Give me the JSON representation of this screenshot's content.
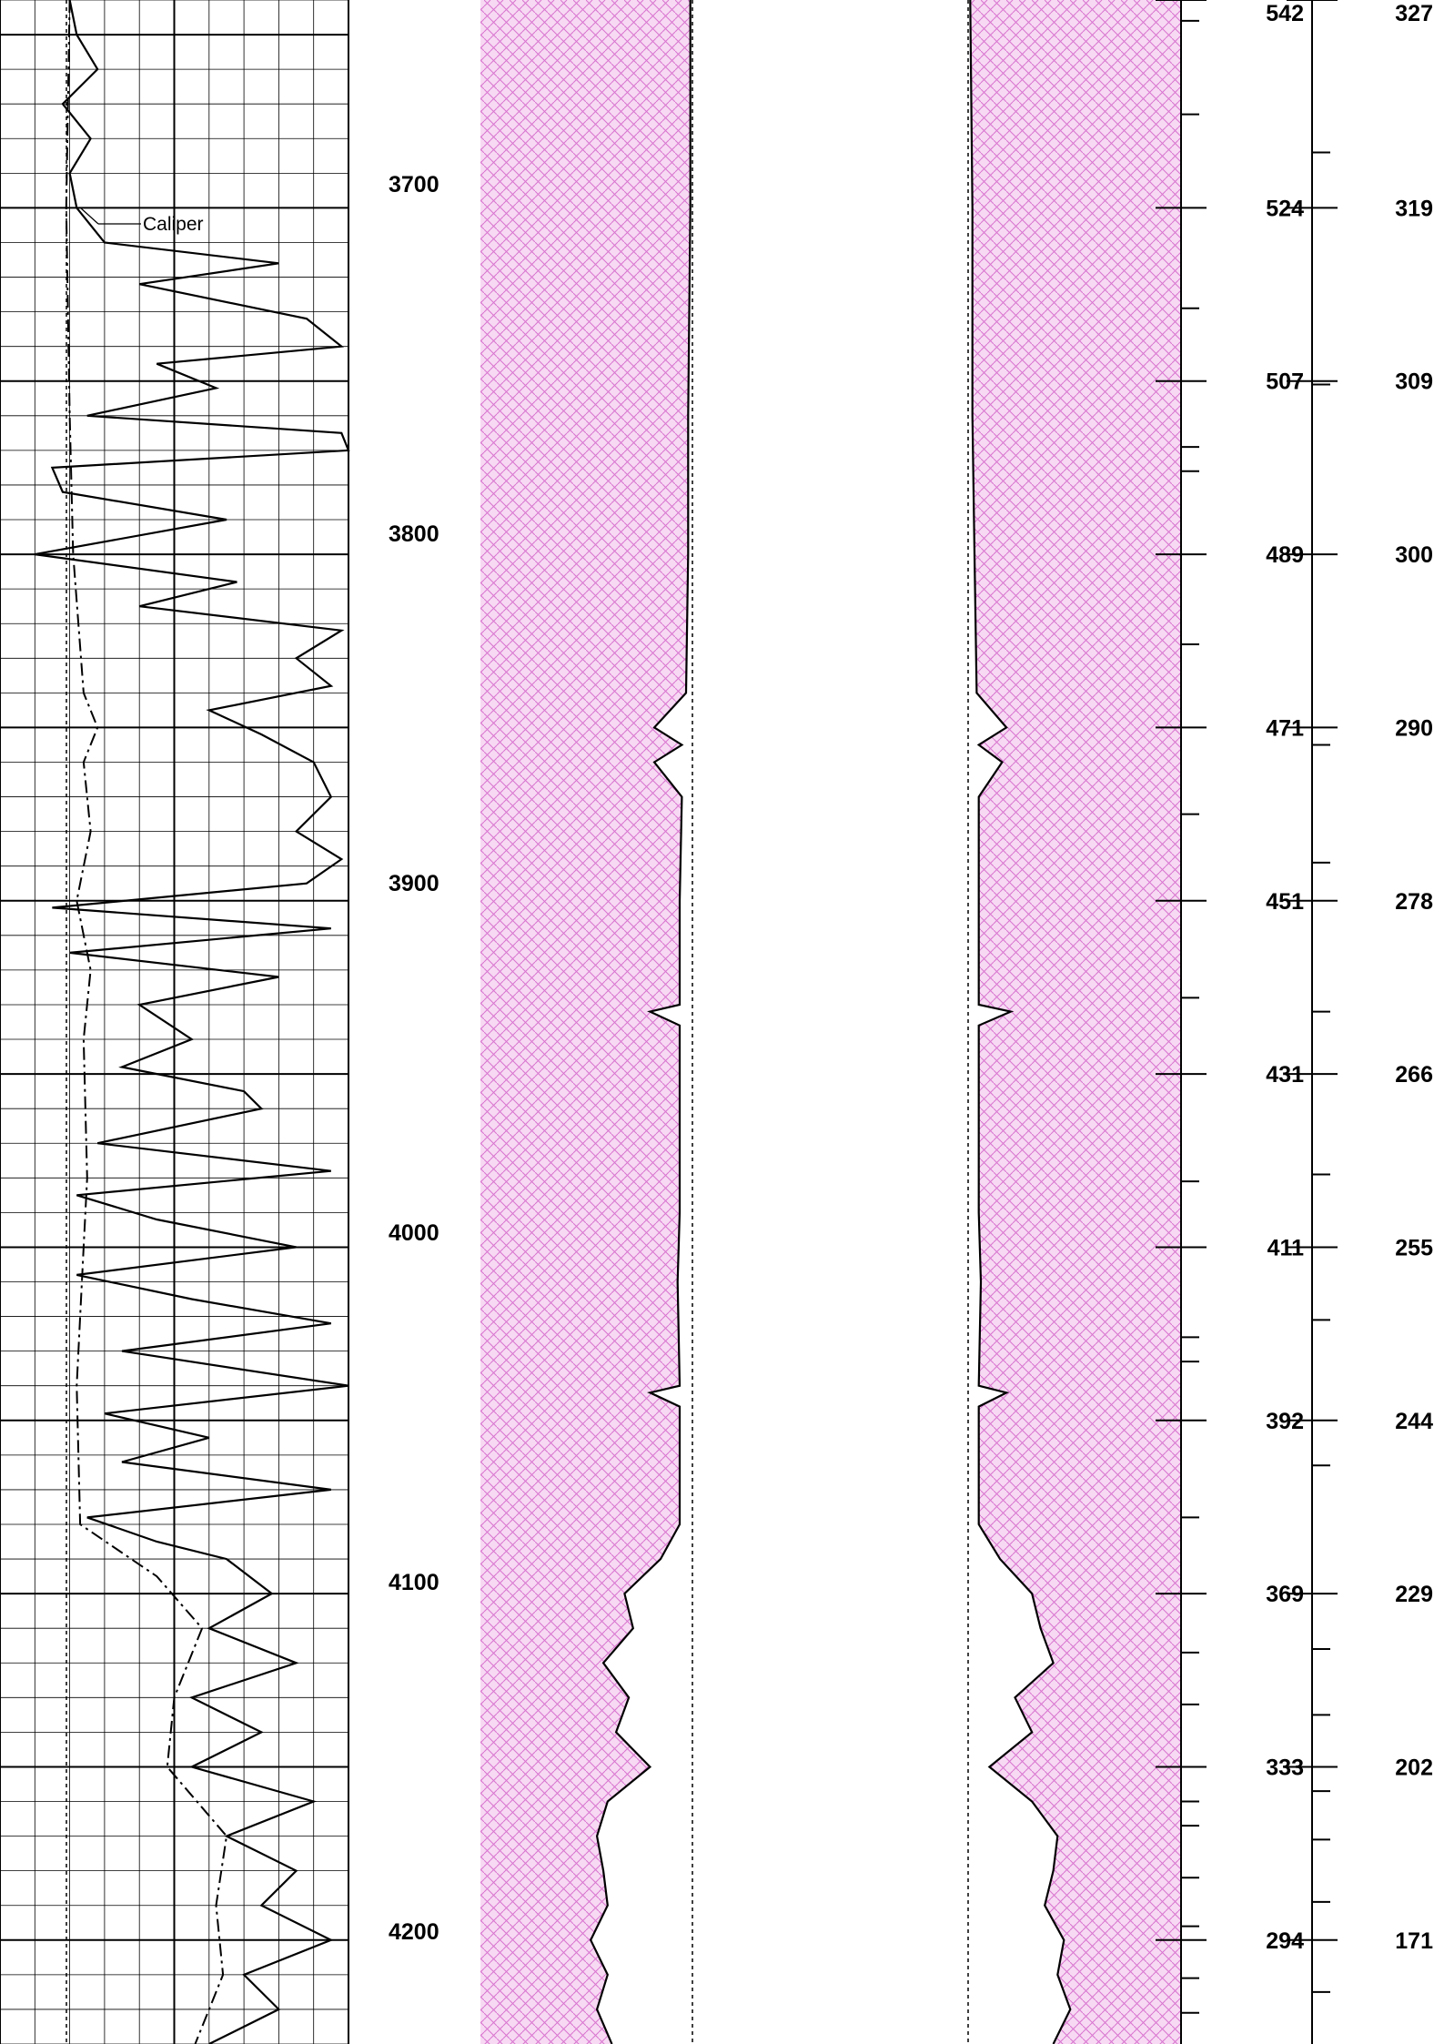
{
  "chart_data": {
    "type": "line",
    "title": "",
    "depth_axis": {
      "range": [
        3640,
        4230
      ],
      "labels": [
        "3700",
        "3800",
        "3900",
        "4000",
        "4100",
        "4200"
      ]
    },
    "track1": {
      "caliper_label": "Caliper",
      "gamma_ray": [
        [
          3640,
          0.2
        ],
        [
          3650,
          0.22
        ],
        [
          3660,
          0.28
        ],
        [
          3670,
          0.18
        ],
        [
          3680,
          0.26
        ],
        [
          3690,
          0.2
        ],
        [
          3700,
          0.22
        ],
        [
          3710,
          0.3
        ],
        [
          3716,
          0.8
        ],
        [
          3722,
          0.4
        ],
        [
          3732,
          0.88
        ],
        [
          3740,
          0.98
        ],
        [
          3745,
          0.45
        ],
        [
          3752,
          0.62
        ],
        [
          3760,
          0.25
        ],
        [
          3765,
          0.98
        ],
        [
          3770,
          1.0
        ],
        [
          3775,
          0.15
        ],
        [
          3782,
          0.18
        ],
        [
          3790,
          0.65
        ],
        [
          3800,
          0.1
        ],
        [
          3808,
          0.68
        ],
        [
          3815,
          0.4
        ],
        [
          3822,
          0.98
        ],
        [
          3830,
          0.85
        ],
        [
          3838,
          0.95
        ],
        [
          3845,
          0.6
        ],
        [
          3852,
          0.75
        ],
        [
          3860,
          0.9
        ],
        [
          3870,
          0.95
        ],
        [
          3880,
          0.85
        ],
        [
          3888,
          0.98
        ],
        [
          3895,
          0.88
        ],
        [
          3902,
          0.15
        ],
        [
          3908,
          0.95
        ],
        [
          3915,
          0.2
        ],
        [
          3922,
          0.8
        ],
        [
          3930,
          0.4
        ],
        [
          3940,
          0.55
        ],
        [
          3948,
          0.35
        ],
        [
          3955,
          0.7
        ],
        [
          3960,
          0.75
        ],
        [
          3970,
          0.28
        ],
        [
          3978,
          0.95
        ],
        [
          3985,
          0.22
        ],
        [
          3992,
          0.45
        ],
        [
          4000,
          0.85
        ],
        [
          4008,
          0.22
        ],
        [
          4015,
          0.55
        ],
        [
          4022,
          0.95
        ],
        [
          4030,
          0.35
        ],
        [
          4040,
          1.0
        ],
        [
          4048,
          0.3
        ],
        [
          4055,
          0.6
        ],
        [
          4062,
          0.35
        ],
        [
          4070,
          0.95
        ],
        [
          4078,
          0.25
        ],
        [
          4085,
          0.45
        ],
        [
          4090,
          0.65
        ],
        [
          4100,
          0.78
        ],
        [
          4110,
          0.6
        ],
        [
          4120,
          0.85
        ],
        [
          4130,
          0.55
        ],
        [
          4140,
          0.75
        ],
        [
          4150,
          0.55
        ],
        [
          4160,
          0.9
        ],
        [
          4170,
          0.65
        ],
        [
          4180,
          0.85
        ],
        [
          4190,
          0.75
        ],
        [
          4200,
          0.95
        ],
        [
          4210,
          0.7
        ],
        [
          4220,
          0.8
        ],
        [
          4230,
          0.6
        ]
      ],
      "caliper": [
        [
          3640,
          0.2
        ],
        [
          3700,
          0.19
        ],
        [
          3760,
          0.2
        ],
        [
          3800,
          0.21
        ],
        [
          3840,
          0.24
        ],
        [
          3850,
          0.28
        ],
        [
          3860,
          0.24
        ],
        [
          3880,
          0.26
        ],
        [
          3900,
          0.22
        ],
        [
          3920,
          0.26
        ],
        [
          3940,
          0.24
        ],
        [
          3980,
          0.25
        ],
        [
          4000,
          0.24
        ],
        [
          4040,
          0.22
        ],
        [
          4080,
          0.23
        ],
        [
          4095,
          0.45
        ],
        [
          4110,
          0.58
        ],
        [
          4130,
          0.5
        ],
        [
          4150,
          0.48
        ],
        [
          4170,
          0.65
        ],
        [
          4190,
          0.62
        ],
        [
          4210,
          0.64
        ],
        [
          4230,
          0.56
        ]
      ]
    },
    "track2": {
      "curve": [
        [
          3640,
          0.99
        ],
        [
          3700,
          0.99
        ],
        [
          3760,
          0.98
        ],
        [
          3800,
          0.98
        ],
        [
          3840,
          0.97
        ],
        [
          3850,
          0.82
        ],
        [
          3855,
          0.95
        ],
        [
          3860,
          0.82
        ],
        [
          3870,
          0.95
        ],
        [
          3900,
          0.94
        ],
        [
          3930,
          0.94
        ],
        [
          3932,
          0.8
        ],
        [
          3936,
          0.94
        ],
        [
          3990,
          0.94
        ],
        [
          4010,
          0.93
        ],
        [
          4040,
          0.94
        ],
        [
          4042,
          0.8
        ],
        [
          4046,
          0.94
        ],
        [
          4080,
          0.94
        ],
        [
          4090,
          0.85
        ],
        [
          4100,
          0.68
        ],
        [
          4110,
          0.72
        ],
        [
          4120,
          0.58
        ],
        [
          4130,
          0.7
        ],
        [
          4140,
          0.64
        ],
        [
          4150,
          0.8
        ],
        [
          4160,
          0.6
        ],
        [
          4170,
          0.55
        ],
        [
          4180,
          0.58
        ],
        [
          4190,
          0.6
        ],
        [
          4200,
          0.52
        ],
        [
          4210,
          0.6
        ],
        [
          4220,
          0.55
        ],
        [
          4230,
          0.62
        ]
      ]
    },
    "track3": {
      "curve": [
        [
          3640,
          0.01
        ],
        [
          3700,
          0.02
        ],
        [
          3760,
          0.02
        ],
        [
          3800,
          0.03
        ],
        [
          3840,
          0.04
        ],
        [
          3850,
          0.18
        ],
        [
          3855,
          0.05
        ],
        [
          3860,
          0.16
        ],
        [
          3870,
          0.05
        ],
        [
          3900,
          0.05
        ],
        [
          3930,
          0.05
        ],
        [
          3932,
          0.2
        ],
        [
          3936,
          0.05
        ],
        [
          3990,
          0.05
        ],
        [
          4010,
          0.06
        ],
        [
          4040,
          0.05
        ],
        [
          4042,
          0.18
        ],
        [
          4046,
          0.05
        ],
        [
          4080,
          0.05
        ],
        [
          4090,
          0.15
        ],
        [
          4100,
          0.3
        ],
        [
          4110,
          0.34
        ],
        [
          4120,
          0.4
        ],
        [
          4130,
          0.22
        ],
        [
          4140,
          0.3
        ],
        [
          4150,
          0.1
        ],
        [
          4160,
          0.3
        ],
        [
          4170,
          0.42
        ],
        [
          4180,
          0.4
        ],
        [
          4190,
          0.36
        ],
        [
          4200,
          0.45
        ],
        [
          4210,
          0.42
        ],
        [
          4220,
          0.48
        ],
        [
          4230,
          0.4
        ]
      ]
    },
    "scale_a": {
      "ticks": [
        {
          "depth": 3640,
          "label": "542"
        },
        {
          "depth": 3700,
          "label": "524"
        },
        {
          "depth": 3750,
          "label": "507"
        },
        {
          "depth": 3800,
          "label": "489"
        },
        {
          "depth": 3850,
          "label": "471"
        },
        {
          "depth": 3900,
          "label": "451"
        },
        {
          "depth": 3950,
          "label": "431"
        },
        {
          "depth": 4000,
          "label": "411"
        },
        {
          "depth": 4050,
          "label": "392"
        },
        {
          "depth": 4100,
          "label": "369"
        },
        {
          "depth": 4150,
          "label": "333"
        },
        {
          "depth": 4200,
          "label": "294"
        }
      ],
      "minor_depths": [
        3646,
        3673,
        3729,
        3769,
        3776,
        3826,
        3875,
        3928,
        3981,
        4026,
        4033,
        4078,
        4117,
        4132,
        4160,
        4167,
        4182,
        4196,
        4211,
        4221
      ]
    },
    "scale_b": {
      "ticks": [
        {
          "depth": 3640,
          "label": "327"
        },
        {
          "depth": 3700,
          "label": "319"
        },
        {
          "depth": 3750,
          "label": "309"
        },
        {
          "depth": 3800,
          "label": "300"
        },
        {
          "depth": 3850,
          "label": "290"
        },
        {
          "depth": 3900,
          "label": "278"
        },
        {
          "depth": 3950,
          "label": "266"
        },
        {
          "depth": 4000,
          "label": "255"
        },
        {
          "depth": 4050,
          "label": "244"
        },
        {
          "depth": 4100,
          "label": "229"
        },
        {
          "depth": 4150,
          "label": "202"
        },
        {
          "depth": 4200,
          "label": "171"
        }
      ],
      "minor_depths": [
        3684,
        3751,
        3855,
        3889,
        3932,
        3979,
        4021,
        4063,
        4116,
        4135,
        4157,
        4171,
        4189,
        4215
      ]
    }
  }
}
